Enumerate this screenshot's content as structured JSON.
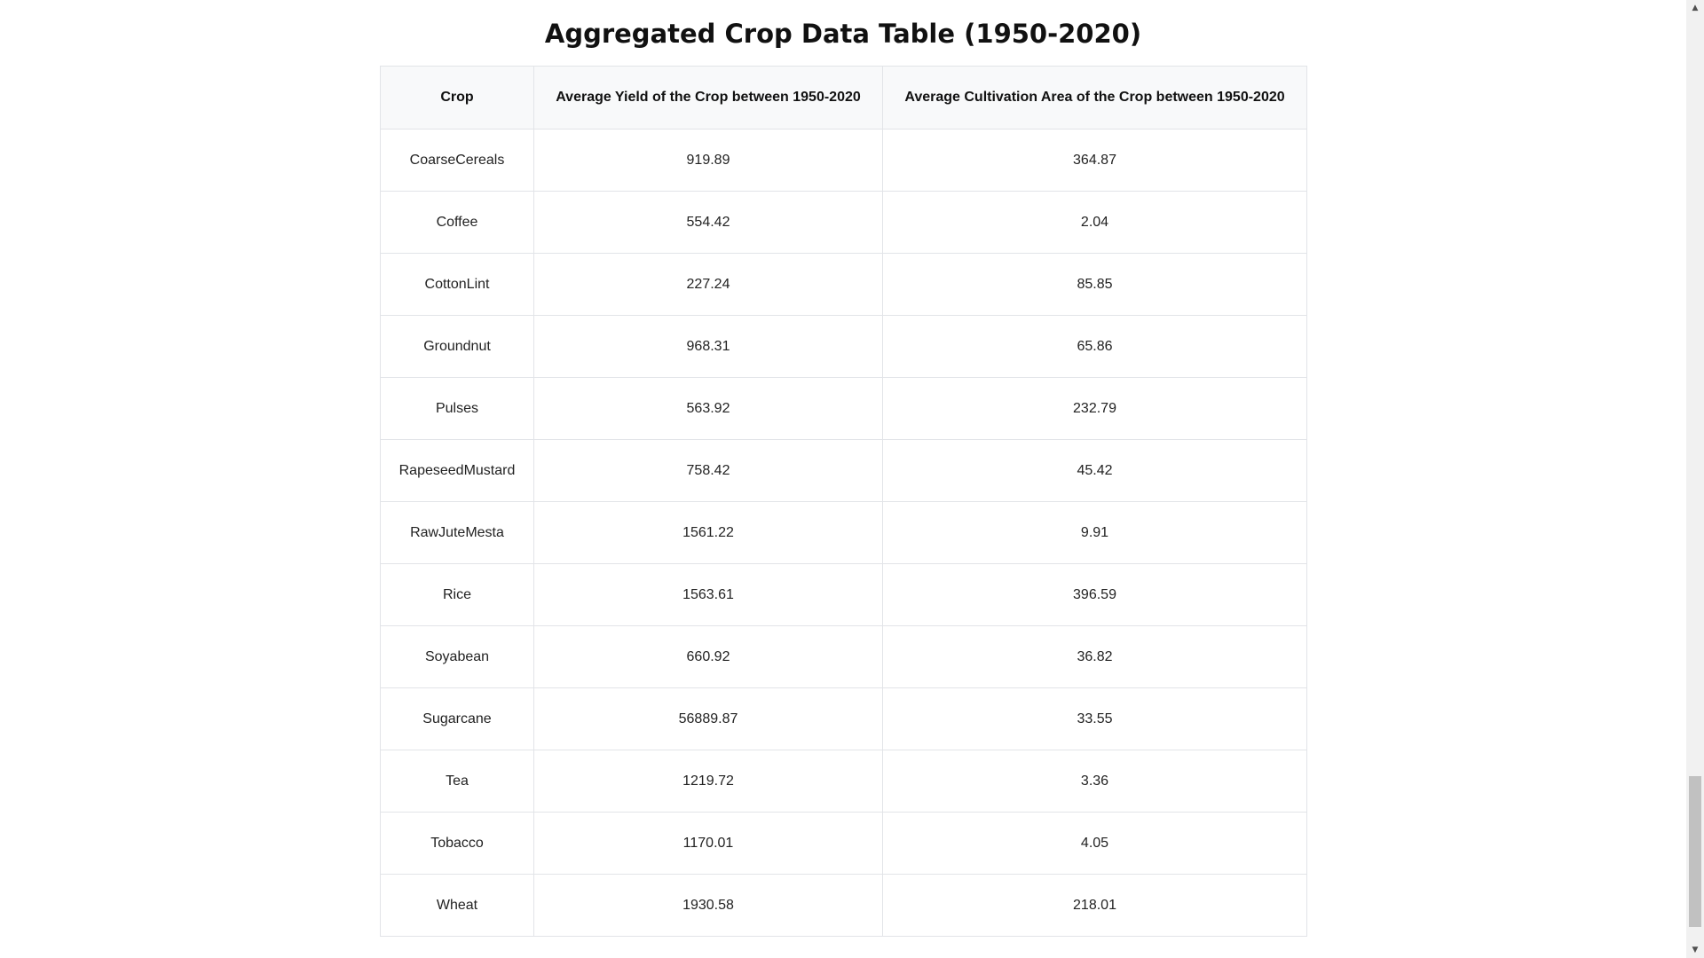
{
  "page": {
    "title": "Aggregated Crop Data Table (1950-2020)"
  },
  "table": {
    "headers": [
      "Crop",
      "Average Yield of the Crop between 1950-2020",
      "Average Cultivation Area of the Crop between 1950-2020"
    ],
    "rows": [
      [
        "CoarseCereals",
        "919.89",
        "364.87"
      ],
      [
        "Coffee",
        "554.42",
        "2.04"
      ],
      [
        "CottonLint",
        "227.24",
        "85.85"
      ],
      [
        "Groundnut",
        "968.31",
        "65.86"
      ],
      [
        "Pulses",
        "563.92",
        "232.79"
      ],
      [
        "RapeseedMustard",
        "758.42",
        "45.42"
      ],
      [
        "RawJuteMesta",
        "1561.22",
        "9.91"
      ],
      [
        "Rice",
        "1563.61",
        "396.59"
      ],
      [
        "Soyabean",
        "660.92",
        "36.82"
      ],
      [
        "Sugarcane",
        "56889.87",
        "33.55"
      ],
      [
        "Tea",
        "1219.72",
        "3.36"
      ],
      [
        "Tobacco",
        "1170.01",
        "4.05"
      ],
      [
        "Wheat",
        "1930.58",
        "218.01"
      ]
    ]
  },
  "scrollbar": {
    "up_icon": "▲",
    "down_icon": "▼",
    "position": 0.98
  }
}
